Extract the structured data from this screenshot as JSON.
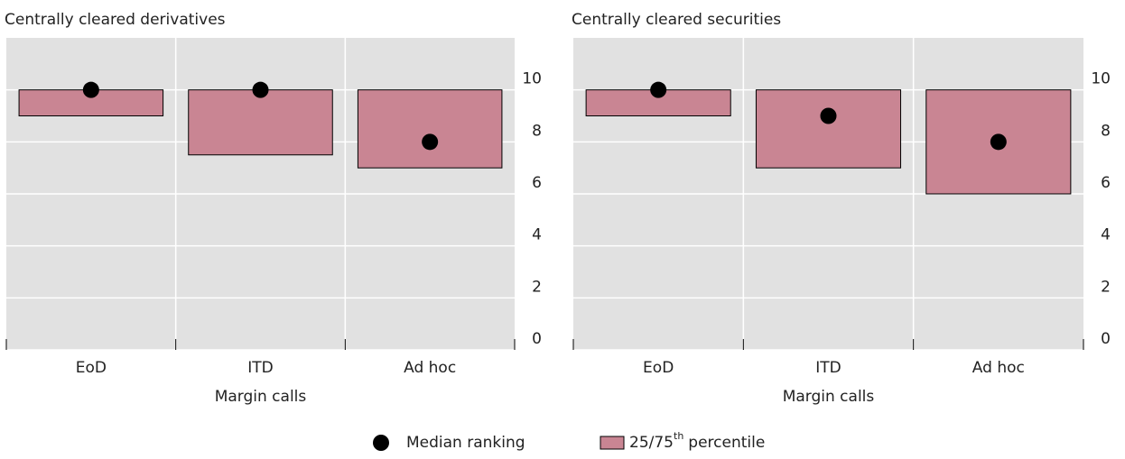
{
  "chart_data": [
    {
      "type": "box",
      "title": "Centrally cleared derivatives",
      "x_label": "Margin calls",
      "categories": [
        "EoD",
        "ITD",
        "Ad hoc"
      ],
      "low": [
        9,
        7.5,
        7
      ],
      "high": [
        10,
        10,
        10
      ],
      "median": [
        10,
        10,
        8
      ],
      "ylim": [
        0,
        12
      ],
      "yticks": [
        0,
        2,
        4,
        6,
        8,
        10
      ],
      "grid": true
    },
    {
      "type": "box",
      "title": "Centrally cleared securities",
      "x_label": "Margin calls",
      "categories": [
        "EoD",
        "ITD",
        "Ad hoc"
      ],
      "low": [
        9,
        7,
        6
      ],
      "high": [
        10,
        10,
        10
      ],
      "median": [
        10,
        9,
        8
      ],
      "ylim": [
        0,
        12
      ],
      "yticks": [
        0,
        2,
        4,
        6,
        8,
        10
      ],
      "grid": true
    }
  ],
  "legend": {
    "median": "Median ranking",
    "range_main": "25/75",
    "range_sup": "th",
    "range_rest": "percentile"
  },
  "colors": {
    "box": "#c98593",
    "median": "#000000",
    "background": "#e1e1e1"
  }
}
